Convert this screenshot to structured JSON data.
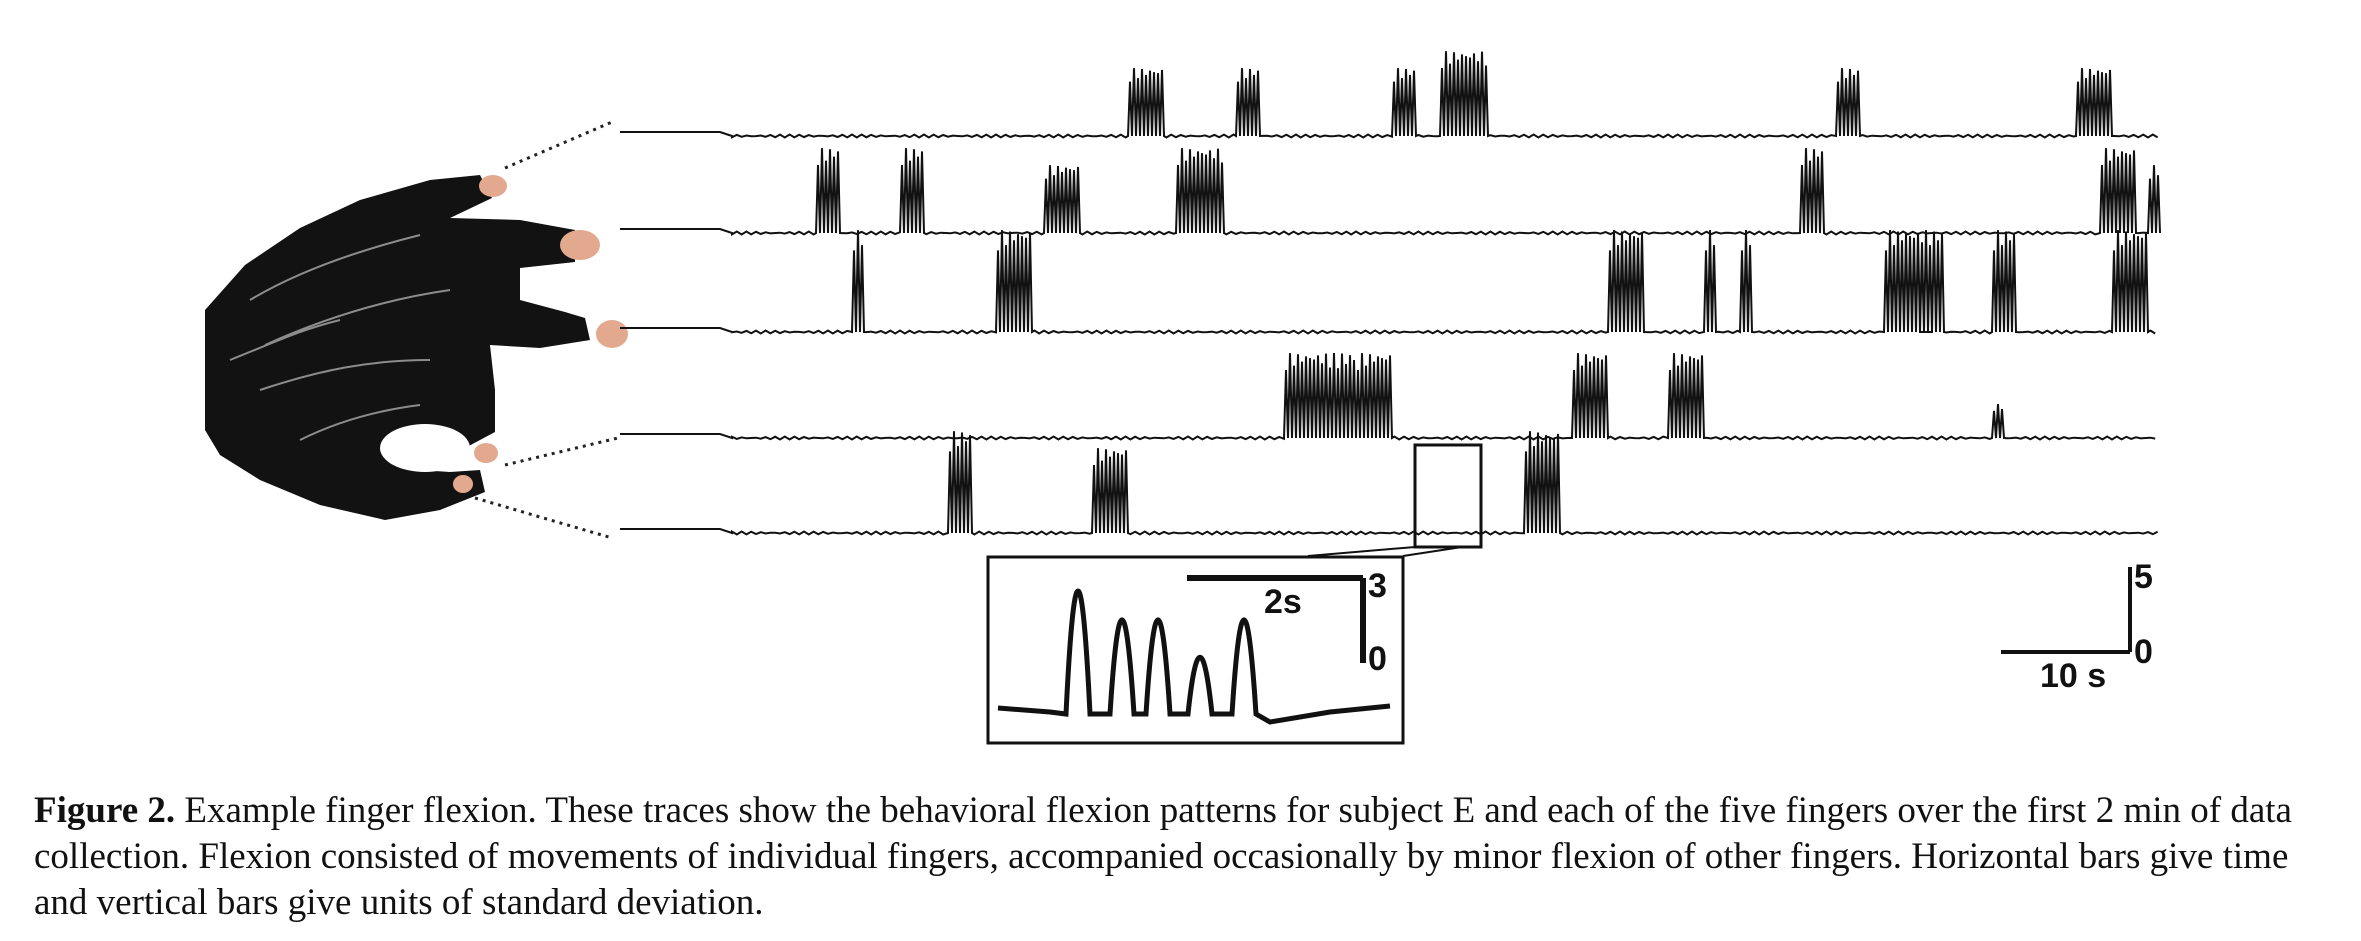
{
  "figure": {
    "inset_scale": {
      "time_label": "2s",
      "y_top": "3",
      "y_bottom": "0"
    },
    "main_scale": {
      "time_label": "10 s",
      "y_top": "5",
      "y_bottom": "0"
    },
    "finger_count": 5
  },
  "caption": {
    "label": "Figure 2.",
    "text": "Example finger flexion. These traces show the behavioral flexion patterns for subject E and each of the five fingers over the first 2 min of data collection. Flexion consisted of movements of individual fingers, accompanied occasionally by minor flexion of other fingers. Horizontal bars give time and vertical bars give units of standard deviation."
  },
  "chart_data": {
    "type": "line",
    "x_unit": "s",
    "xlim": [
      0,
      120
    ],
    "series": [
      {
        "bursts": [
          [
            34,
            3,
            4
          ],
          [
            43,
            2,
            4
          ],
          [
            56,
            2,
            4
          ],
          [
            60,
            4,
            5
          ],
          [
            93,
            2,
            4
          ],
          [
            113,
            3,
            4
          ]
        ]
      },
      {
        "bursts": [
          [
            8,
            2,
            5
          ],
          [
            15,
            2,
            5
          ],
          [
            27,
            3,
            4
          ],
          [
            38,
            4,
            5
          ],
          [
            90,
            2,
            5
          ],
          [
            115,
            3,
            5
          ],
          [
            119,
            1,
            4
          ]
        ]
      },
      {
        "bursts": [
          [
            11,
            1,
            6
          ],
          [
            23,
            3,
            6
          ],
          [
            74,
            3,
            6
          ],
          [
            82,
            1,
            6
          ],
          [
            85,
            1,
            6
          ],
          [
            97,
            4,
            6
          ],
          [
            100,
            2,
            6
          ],
          [
            106,
            2,
            6
          ],
          [
            116,
            3,
            6
          ]
        ]
      },
      {
        "bursts": [
          [
            47,
            6,
            5
          ],
          [
            53,
            3,
            5
          ],
          [
            71,
            3,
            5
          ],
          [
            79,
            3,
            5
          ],
          [
            106,
            1,
            2
          ]
        ]
      },
      {
        "bursts": [
          [
            19,
            2,
            6
          ],
          [
            31,
            3,
            5
          ],
          [
            67,
            3,
            6
          ]
        ]
      }
    ],
    "inset": {
      "peaks": [
        2.9,
        2.2,
        2.2,
        1.3,
        2.2
      ]
    }
  }
}
